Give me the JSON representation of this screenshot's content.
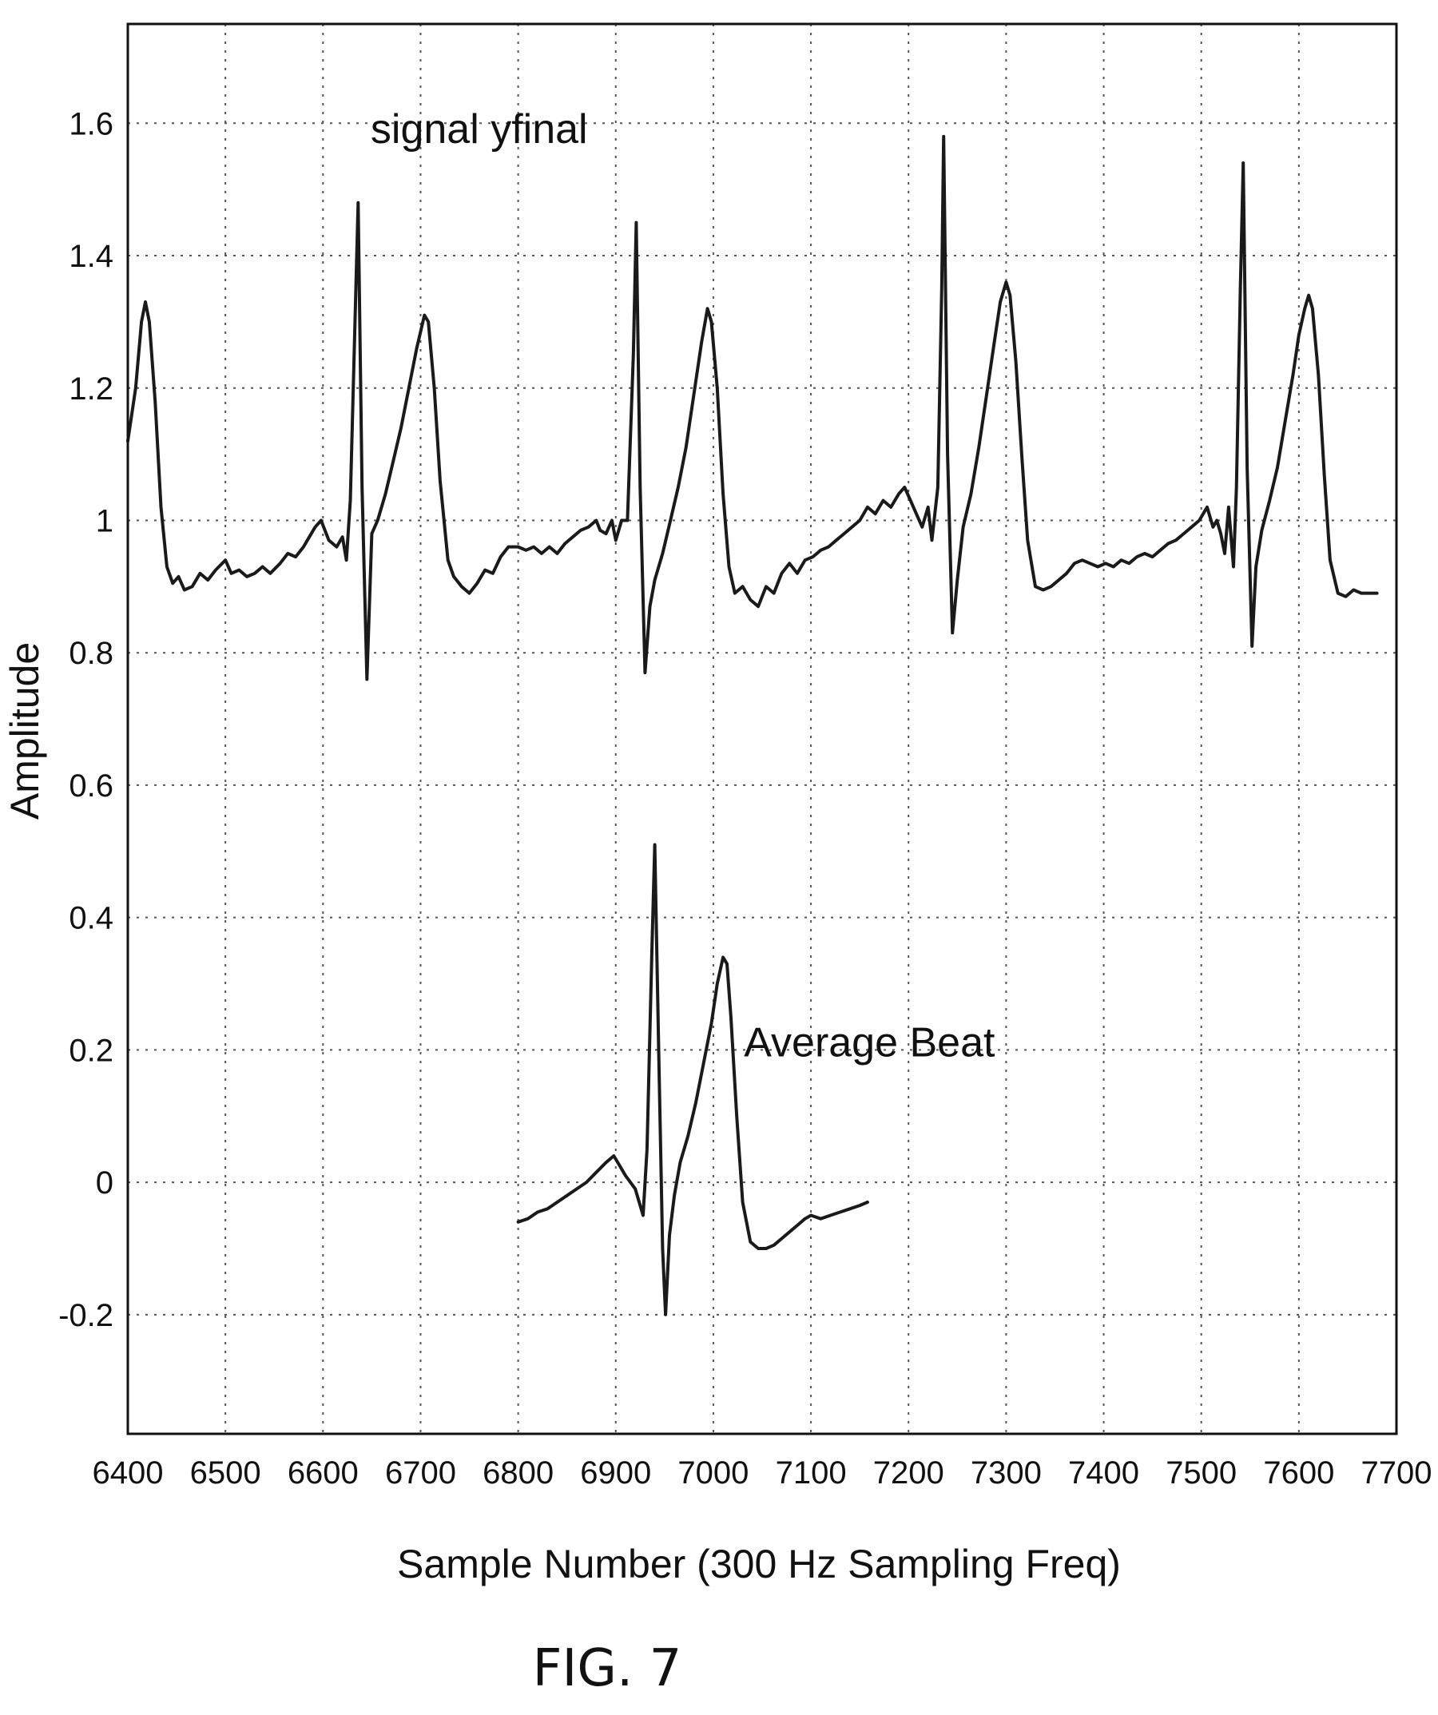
{
  "chart_data": {
    "type": "line",
    "title": "",
    "xlabel": "Sample Number (300 Hz Sampling Freq)",
    "ylabel": "Amplitude",
    "xlim": [
      6400,
      7700
    ],
    "ylim": [
      -0.38,
      1.75
    ],
    "xticks": [
      6400,
      6500,
      6600,
      6700,
      6800,
      6900,
      7000,
      7100,
      7200,
      7300,
      7400,
      7500,
      7600,
      7700
    ],
    "xtick_labels": [
      "6400",
      "6500",
      "6600",
      "6700",
      "6800",
      "6900",
      "7000",
      "7100",
      "7200",
      "7300",
      "7400",
      "7500",
      "7600",
      "7700"
    ],
    "yticks": [
      -0.2,
      0,
      0.2,
      0.4,
      0.6,
      0.8,
      1,
      1.2,
      1.4,
      1.6
    ],
    "ytick_labels": [
      "-0.2",
      "0",
      "0.2",
      "0.4",
      "0.6",
      "0.8",
      "1",
      "1.2",
      "1.4",
      "1.6"
    ],
    "grid": true,
    "annotations": [
      {
        "text": "signal yfinal",
        "x": 6760,
        "y": 1.57
      },
      {
        "text": "Average Beat",
        "x": 7160,
        "y": 0.19
      }
    ],
    "series": [
      {
        "points": [
          [
            6400,
            1.12
          ],
          [
            6408,
            1.2
          ],
          [
            6414,
            1.3
          ],
          [
            6418,
            1.33
          ],
          [
            6422,
            1.3
          ],
          [
            6428,
            1.18
          ],
          [
            6434,
            1.02
          ],
          [
            6440,
            0.93
          ],
          [
            6446,
            0.905
          ],
          [
            6452,
            0.915
          ],
          [
            6458,
            0.895
          ],
          [
            6466,
            0.9
          ],
          [
            6474,
            0.92
          ],
          [
            6482,
            0.91
          ],
          [
            6490,
            0.925
          ],
          [
            6500,
            0.94
          ],
          [
            6506,
            0.92
          ],
          [
            6514,
            0.925
          ],
          [
            6522,
            0.915
          ],
          [
            6530,
            0.92
          ],
          [
            6538,
            0.93
          ],
          [
            6546,
            0.92
          ],
          [
            6556,
            0.935
          ],
          [
            6564,
            0.95
          ],
          [
            6572,
            0.945
          ],
          [
            6580,
            0.96
          ],
          [
            6586,
            0.975
          ],
          [
            6592,
            0.99
          ],
          [
            6598,
            1.0
          ],
          [
            6606,
            0.97
          ],
          [
            6614,
            0.96
          ],
          [
            6620,
            0.975
          ],
          [
            6624,
            0.94
          ],
          [
            6628,
            1.03
          ],
          [
            6633,
            1.31
          ],
          [
            6636,
            1.48
          ],
          [
            6640,
            1.05
          ],
          [
            6645,
            0.76
          ],
          [
            6650,
            0.98
          ],
          [
            6656,
            1.0
          ],
          [
            6664,
            1.04
          ],
          [
            6672,
            1.09
          ],
          [
            6680,
            1.14
          ],
          [
            6688,
            1.2
          ],
          [
            6696,
            1.26
          ],
          [
            6704,
            1.31
          ],
          [
            6708,
            1.3
          ],
          [
            6714,
            1.2
          ],
          [
            6720,
            1.06
          ],
          [
            6728,
            0.94
          ],
          [
            6734,
            0.915
          ],
          [
            6742,
            0.9
          ],
          [
            6750,
            0.89
          ],
          [
            6758,
            0.905
          ],
          [
            6766,
            0.925
          ],
          [
            6774,
            0.92
          ],
          [
            6782,
            0.945
          ],
          [
            6790,
            0.96
          ],
          [
            6800,
            0.96
          ],
          [
            6808,
            0.955
          ],
          [
            6816,
            0.96
          ],
          [
            6824,
            0.95
          ],
          [
            6832,
            0.96
          ],
          [
            6840,
            0.95
          ],
          [
            6848,
            0.965
          ],
          [
            6856,
            0.975
          ],
          [
            6864,
            0.985
          ],
          [
            6872,
            0.99
          ],
          [
            6880,
            1.0
          ],
          [
            6884,
            0.985
          ],
          [
            6890,
            0.98
          ],
          [
            6896,
            1.0
          ],
          [
            6900,
            0.97
          ],
          [
            6906,
            1.0
          ],
          [
            6912,
            1.0
          ],
          [
            6918,
            1.25
          ],
          [
            6921,
            1.45
          ],
          [
            6925,
            1.05
          ],
          [
            6930,
            0.77
          ],
          [
            6935,
            0.87
          ],
          [
            6940,
            0.91
          ],
          [
            6948,
            0.95
          ],
          [
            6956,
            1.0
          ],
          [
            6964,
            1.05
          ],
          [
            6972,
            1.11
          ],
          [
            6980,
            1.19
          ],
          [
            6988,
            1.27
          ],
          [
            6994,
            1.32
          ],
          [
            6998,
            1.3
          ],
          [
            7004,
            1.2
          ],
          [
            7010,
            1.04
          ],
          [
            7016,
            0.93
          ],
          [
            7022,
            0.89
          ],
          [
            7030,
            0.9
          ],
          [
            7038,
            0.88
          ],
          [
            7046,
            0.87
          ],
          [
            7054,
            0.9
          ],
          [
            7062,
            0.89
          ],
          [
            7070,
            0.92
          ],
          [
            7078,
            0.935
          ],
          [
            7086,
            0.92
          ],
          [
            7094,
            0.94
          ],
          [
            7102,
            0.945
          ],
          [
            7110,
            0.955
          ],
          [
            7118,
            0.96
          ],
          [
            7126,
            0.97
          ],
          [
            7134,
            0.98
          ],
          [
            7142,
            0.99
          ],
          [
            7150,
            1.0
          ],
          [
            7158,
            1.02
          ],
          [
            7166,
            1.01
          ],
          [
            7174,
            1.03
          ],
          [
            7182,
            1.02
          ],
          [
            7190,
            1.04
          ],
          [
            7196,
            1.05
          ],
          [
            7202,
            1.03
          ],
          [
            7208,
            1.01
          ],
          [
            7214,
            0.99
          ],
          [
            7220,
            1.02
          ],
          [
            7224,
            0.97
          ],
          [
            7230,
            1.05
          ],
          [
            7234,
            1.35
          ],
          [
            7236,
            1.58
          ],
          [
            7240,
            1.1
          ],
          [
            7245,
            0.83
          ],
          [
            7250,
            0.91
          ],
          [
            7256,
            0.99
          ],
          [
            7264,
            1.04
          ],
          [
            7272,
            1.11
          ],
          [
            7280,
            1.19
          ],
          [
            7288,
            1.27
          ],
          [
            7294,
            1.33
          ],
          [
            7300,
            1.36
          ],
          [
            7304,
            1.34
          ],
          [
            7310,
            1.24
          ],
          [
            7316,
            1.1
          ],
          [
            7322,
            0.97
          ],
          [
            7330,
            0.9
          ],
          [
            7338,
            0.895
          ],
          [
            7346,
            0.9
          ],
          [
            7354,
            0.91
          ],
          [
            7362,
            0.92
          ],
          [
            7370,
            0.935
          ],
          [
            7378,
            0.94
          ],
          [
            7386,
            0.935
          ],
          [
            7394,
            0.93
          ],
          [
            7402,
            0.935
          ],
          [
            7410,
            0.93
          ],
          [
            7418,
            0.94
          ],
          [
            7426,
            0.935
          ],
          [
            7434,
            0.945
          ],
          [
            7442,
            0.95
          ],
          [
            7450,
            0.945
          ],
          [
            7458,
            0.955
          ],
          [
            7466,
            0.965
          ],
          [
            7474,
            0.97
          ],
          [
            7482,
            0.98
          ],
          [
            7490,
            0.99
          ],
          [
            7498,
            1.0
          ],
          [
            7506,
            1.02
          ],
          [
            7512,
            0.99
          ],
          [
            7516,
            1.0
          ],
          [
            7520,
            0.98
          ],
          [
            7524,
            0.95
          ],
          [
            7528,
            1.02
          ],
          [
            7533,
            0.93
          ],
          [
            7536,
            1.05
          ],
          [
            7540,
            1.35
          ],
          [
            7543,
            1.54
          ],
          [
            7547,
            1.08
          ],
          [
            7552,
            0.81
          ],
          [
            7556,
            0.93
          ],
          [
            7562,
            0.985
          ],
          [
            7570,
            1.03
          ],
          [
            7578,
            1.08
          ],
          [
            7586,
            1.15
          ],
          [
            7594,
            1.22
          ],
          [
            7600,
            1.28
          ],
          [
            7606,
            1.32
          ],
          [
            7610,
            1.34
          ],
          [
            7614,
            1.32
          ],
          [
            7620,
            1.22
          ],
          [
            7626,
            1.07
          ],
          [
            7632,
            0.94
          ],
          [
            7640,
            0.89
          ],
          [
            7648,
            0.885
          ],
          [
            7656,
            0.895
          ],
          [
            7664,
            0.89
          ],
          [
            7672,
            0.89
          ],
          [
            7680,
            0.89
          ]
        ]
      },
      {
        "points": [
          [
            6800,
            -0.06
          ],
          [
            6810,
            -0.055
          ],
          [
            6820,
            -0.045
          ],
          [
            6830,
            -0.04
          ],
          [
            6840,
            -0.03
          ],
          [
            6850,
            -0.02
          ],
          [
            6860,
            -0.01
          ],
          [
            6870,
            0.0
          ],
          [
            6880,
            0.015
          ],
          [
            6890,
            0.03
          ],
          [
            6898,
            0.04
          ],
          [
            6904,
            0.025
          ],
          [
            6910,
            0.01
          ],
          [
            6915,
            0.0
          ],
          [
            6920,
            -0.01
          ],
          [
            6924,
            -0.03
          ],
          [
            6928,
            -0.05
          ],
          [
            6932,
            0.05
          ],
          [
            6937,
            0.35
          ],
          [
            6940,
            0.51
          ],
          [
            6944,
            0.2
          ],
          [
            6948,
            -0.1
          ],
          [
            6951,
            -0.2
          ],
          [
            6955,
            -0.08
          ],
          [
            6960,
            -0.02
          ],
          [
            6966,
            0.03
          ],
          [
            6974,
            0.07
          ],
          [
            6982,
            0.12
          ],
          [
            6990,
            0.18
          ],
          [
            6998,
            0.24
          ],
          [
            7004,
            0.3
          ],
          [
            7010,
            0.34
          ],
          [
            7014,
            0.33
          ],
          [
            7018,
            0.25
          ],
          [
            7024,
            0.1
          ],
          [
            7030,
            -0.03
          ],
          [
            7038,
            -0.09
          ],
          [
            7046,
            -0.1
          ],
          [
            7054,
            -0.1
          ],
          [
            7062,
            -0.095
          ],
          [
            7070,
            -0.085
          ],
          [
            7078,
            -0.075
          ],
          [
            7086,
            -0.065
          ],
          [
            7094,
            -0.055
          ],
          [
            7100,
            -0.05
          ],
          [
            7110,
            -0.055
          ],
          [
            7120,
            -0.05
          ],
          [
            7130,
            -0.045
          ],
          [
            7140,
            -0.04
          ],
          [
            7150,
            -0.035
          ],
          [
            7158,
            -0.03
          ]
        ]
      }
    ]
  },
  "figure_label": "FIG. 7"
}
